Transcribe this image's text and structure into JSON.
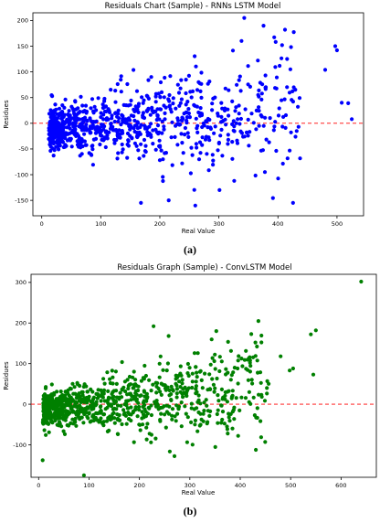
{
  "chart_data": [
    {
      "type": "scatter",
      "title": "Residuals Chart (Sample) - RNNs LSTM Model",
      "xlabel": "Real Value",
      "ylabel": "Residues",
      "panel_label": "(a)",
      "xlim": [
        -15,
        545
      ],
      "ylim": [
        -180,
        215
      ],
      "xticks": [
        0,
        100,
        200,
        300,
        400,
        500
      ],
      "yticks": [
        -150,
        -100,
        -50,
        0,
        50,
        100,
        150,
        200
      ],
      "point_color": "#0000ff",
      "reference_line": {
        "y": 0,
        "color": "#ff0000",
        "style": "dashed"
      },
      "seed": 7,
      "n_points": 900,
      "x_range": [
        12,
        525
      ],
      "highlight_points": [
        [
          343,
          205
        ],
        [
          412,
          182
        ],
        [
          407,
          152
        ],
        [
          480,
          104
        ],
        [
          497,
          150
        ],
        [
          500,
          142
        ],
        [
          508,
          40
        ],
        [
          519,
          39
        ],
        [
          525,
          8
        ],
        [
          168,
          -155
        ],
        [
          260,
          -160
        ],
        [
          215,
          -150
        ],
        [
          378,
          -95
        ],
        [
          326,
          -112
        ],
        [
          301,
          -130
        ]
      ]
    },
    {
      "type": "scatter",
      "title": "Residuals Graph (Sample) - ConvLSTM Model",
      "xlabel": "Real Value",
      "ylabel": "Residues",
      "panel_label": "(b)",
      "xlim": [
        -15,
        670
      ],
      "ylim": [
        -180,
        320
      ],
      "xticks": [
        0,
        100,
        200,
        300,
        400,
        500,
        600
      ],
      "yticks": [
        -100,
        0,
        100,
        200,
        300
      ],
      "point_color": "#008000",
      "reference_line": {
        "y": 0,
        "color": "#ff0000",
        "style": "dashed"
      },
      "seed": 13,
      "n_points": 900,
      "x_range": [
        8,
        550
      ],
      "highlight_points": [
        [
          640,
          302
        ],
        [
          550,
          182
        ],
        [
          540,
          172
        ],
        [
          545,
          73
        ],
        [
          505,
          88
        ],
        [
          498,
          83
        ],
        [
          480,
          118
        ],
        [
          436,
          205
        ],
        [
          430,
          152
        ],
        [
          228,
          192
        ],
        [
          90,
          -175
        ],
        [
          8,
          -138
        ],
        [
          258,
          168
        ]
      ]
    }
  ]
}
